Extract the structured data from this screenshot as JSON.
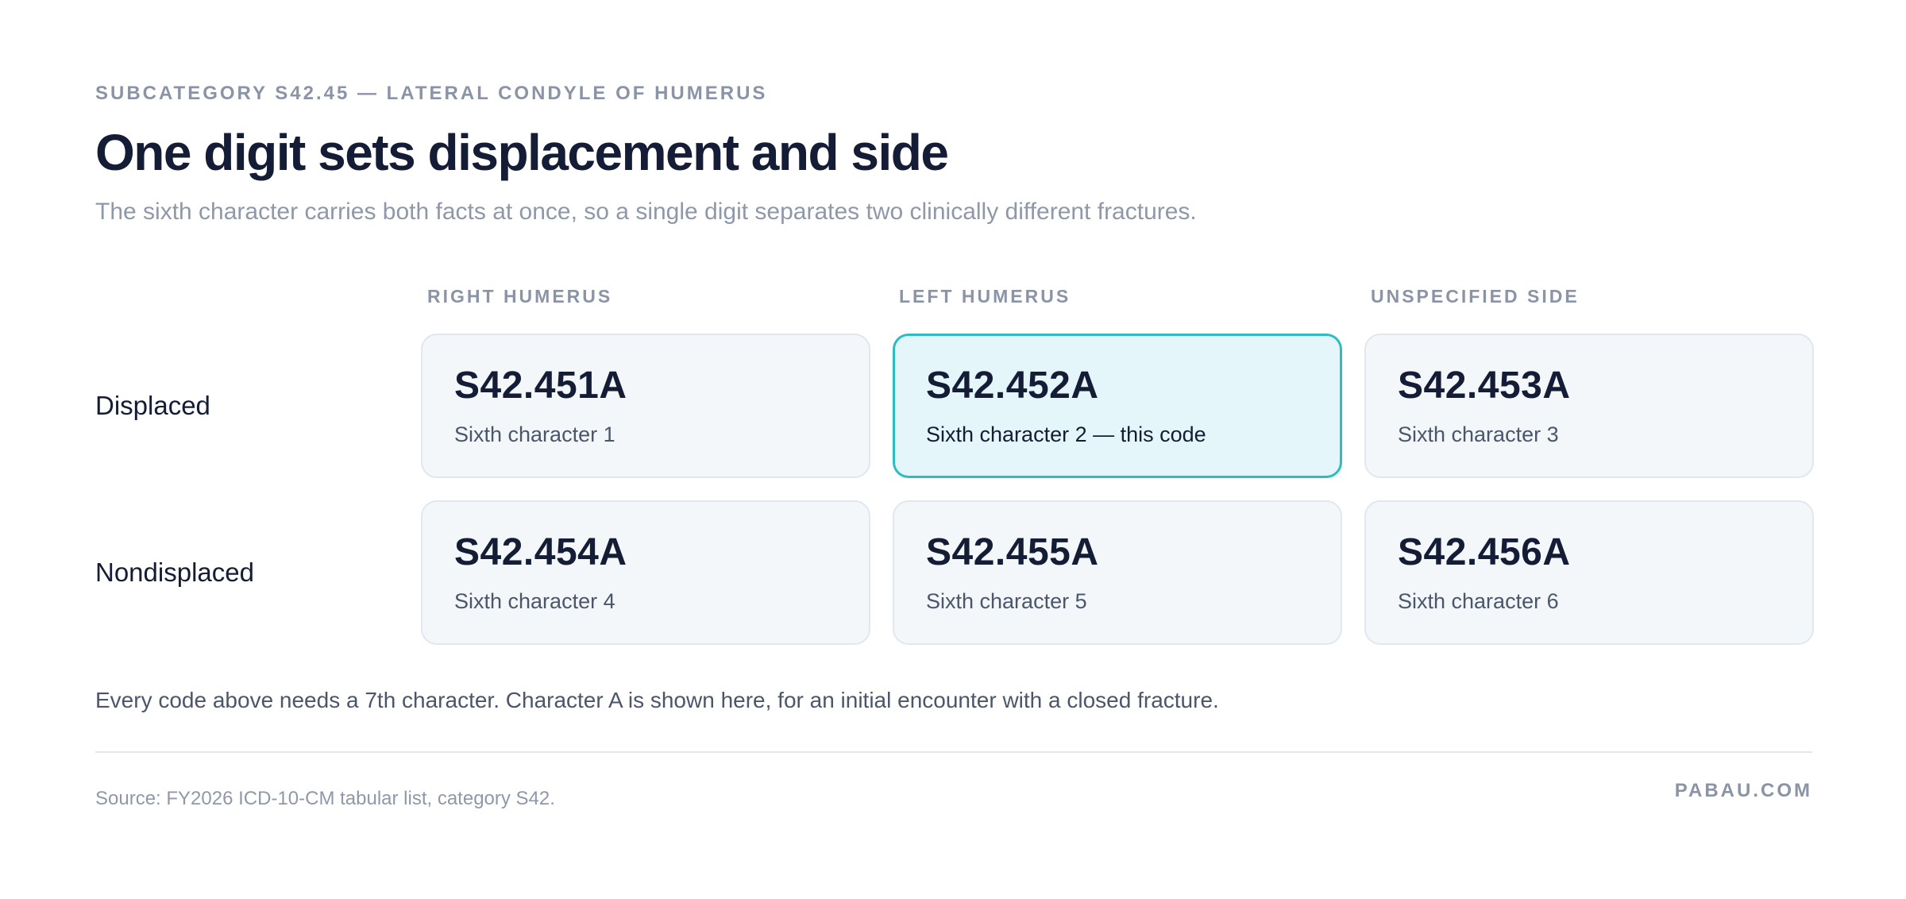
{
  "header": {
    "eyebrow": "SUBCATEGORY S42.45 — LATERAL CONDYLE OF HUMERUS",
    "title": "One digit sets displacement and side",
    "subtitle": "The sixth character carries both facts at once, so a single digit separates two clinically different fractures."
  },
  "grid": {
    "columns": [
      "RIGHT HUMERUS",
      "LEFT HUMERUS",
      "UNSPECIFIED SIDE"
    ],
    "rows": [
      {
        "label": "Displaced",
        "cells": [
          {
            "code": "S42.451A",
            "desc": "Sixth character 1",
            "highlighted": false
          },
          {
            "code": "S42.452A",
            "desc": "Sixth character 2 — this code",
            "highlighted": true
          },
          {
            "code": "S42.453A",
            "desc": "Sixth character 3",
            "highlighted": false
          }
        ]
      },
      {
        "label": "Nondisplaced",
        "cells": [
          {
            "code": "S42.454A",
            "desc": "Sixth character 4",
            "highlighted": false
          },
          {
            "code": "S42.455A",
            "desc": "Sixth character 5",
            "highlighted": false
          },
          {
            "code": "S42.456A",
            "desc": "Sixth character 6",
            "highlighted": false
          }
        ]
      }
    ]
  },
  "note": "Every code above needs a 7th character. Character A is shown here, for an initial encounter with a closed fracture.",
  "footer": {
    "source": "Source: FY2026 ICD-10-CM tabular list, category S42.",
    "brand": "PABAU.COM"
  },
  "colors": {
    "highlight_border": "#2cbdc3",
    "highlight_fill": "#e4f6f9",
    "card_fill": "#f3f7fa",
    "title": "#141d35",
    "muted": "#8a94a6"
  }
}
